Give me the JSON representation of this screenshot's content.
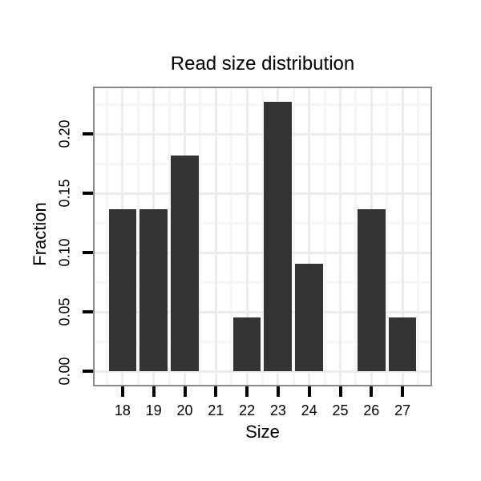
{
  "chart_data": {
    "type": "bar",
    "title": "Read size distribution",
    "xlabel": "Size",
    "ylabel": "Fraction",
    "categories": [
      18,
      19,
      20,
      21,
      22,
      23,
      24,
      25,
      26,
      27
    ],
    "values": [
      0.1364,
      0.1364,
      0.1818,
      0,
      0.0455,
      0.2273,
      0.0909,
      0,
      0.1364,
      0.0455
    ],
    "x_tick_labels": [
      "18",
      "19",
      "20",
      "21",
      "22",
      "23",
      "24",
      "25",
      "26",
      "27"
    ],
    "y_ticks": [
      0,
      0.05,
      0.1,
      0.15,
      0.2
    ],
    "y_tick_labels": [
      "0.00",
      "0.05",
      "0.10",
      "0.15",
      "0.20"
    ],
    "xlim": [
      17.1,
      27.9
    ],
    "ylim": [
      -0.0114,
      0.2386
    ],
    "x_minor_ticks": [
      17.5,
      18.5,
      19.5,
      20.5,
      21.5,
      22.5,
      23.5,
      24.5,
      25.5,
      26.5,
      27.5
    ],
    "y_minor_ticks": [
      0.025,
      0.075,
      0.125,
      0.175,
      0.225
    ],
    "bar_width_units": 0.9,
    "grid": "major and minor, on",
    "legend_position": "none",
    "colors": {
      "bar_fill": "#333333",
      "panel_border": "#8a8a8a",
      "grid_major": "#ececec",
      "grid_minor": "#f6f6f6",
      "axis_tick": "#000000",
      "text": "#000000",
      "background": "#ffffff"
    }
  }
}
